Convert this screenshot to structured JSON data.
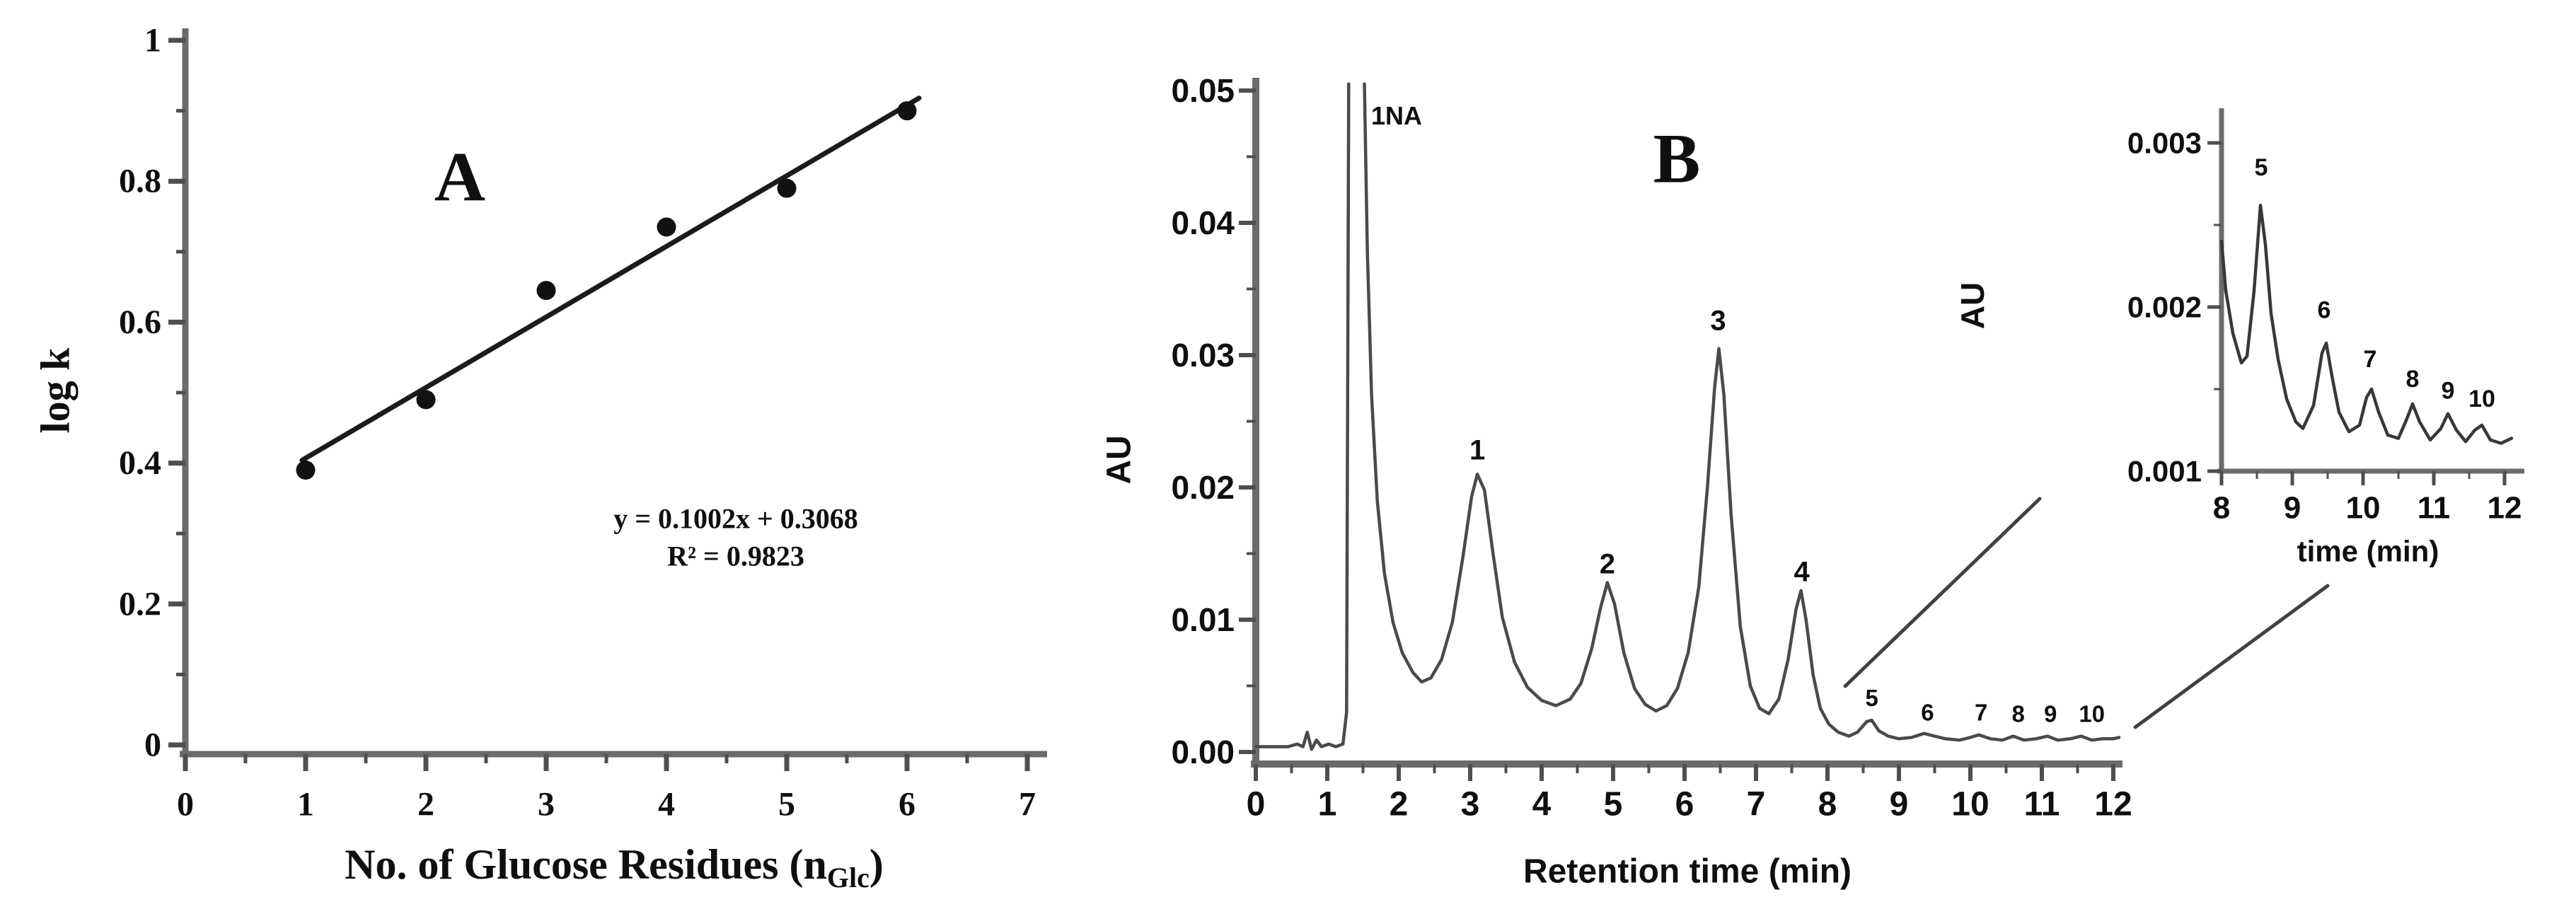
{
  "figure": {
    "panels": {
      "A": {
        "label": "A",
        "ylabel": "log k",
        "xlabel_main": "No. of Glucose Residues (n",
        "xlabel_sub": "Glc",
        "xlabel_end": ")",
        "equation_line1": "y = 0.1002x + 0.3068",
        "equation_line2": "R² = 0.9823"
      },
      "B": {
        "label": "B",
        "ylabel": "AU",
        "xlabel": "Retention time (min)"
      },
      "inset": {
        "ylabel": "AU",
        "xlabel": "time (min)"
      }
    }
  },
  "colors": {
    "axis": "#6b6b6b",
    "tick": "#4f4f4f",
    "trace": "#4a4a4a",
    "inset_trace": "#383838",
    "fit_line": "#1b1b1b",
    "point": "#111111",
    "text": "#0f0f0f",
    "connector": "#414141"
  },
  "chart_data": [
    {
      "id": "A",
      "type": "scatter",
      "title": "A",
      "xlabel": "No. of Glucose Residues (n_Glc)",
      "ylabel": "log k",
      "xlim": [
        0,
        7
      ],
      "ylim": [
        0,
        1
      ],
      "xticks": [
        {
          "v": 0,
          "label": "0"
        },
        {
          "v": 1,
          "label": "1"
        },
        {
          "v": 2,
          "label": "2"
        },
        {
          "v": 3,
          "label": "3"
        },
        {
          "v": 4,
          "label": "4"
        },
        {
          "v": 5,
          "label": "5"
        },
        {
          "v": 6,
          "label": "6"
        },
        {
          "v": 7,
          "label": "7"
        }
      ],
      "yticks": [
        {
          "v": 0,
          "label": "0"
        },
        {
          "v": 0.2,
          "label": "0.2"
        },
        {
          "v": 0.4,
          "label": "0.4"
        },
        {
          "v": 0.6,
          "label": "0.6"
        },
        {
          "v": 0.8,
          "label": "0.8"
        },
        {
          "v": 1,
          "label": "1"
        }
      ],
      "xminor": [
        0.5,
        1.5,
        2.5,
        3.5,
        4.5,
        5.5,
        6.5
      ],
      "yminor": [
        0.1,
        0.3,
        0.5,
        0.7,
        0.9
      ],
      "points": [
        [
          1,
          0.39
        ],
        [
          2,
          0.49
        ],
        [
          3,
          0.645
        ],
        [
          4,
          0.735
        ],
        [
          5,
          0.79
        ],
        [
          6,
          0.9
        ]
      ],
      "fit_line": {
        "x1": 0.97,
        "y1": 0.404,
        "x2": 6.1,
        "y2": 0.918
      },
      "fit_slope": 0.1002,
      "fit_intercept": 0.3068,
      "r_squared": 0.9823
    },
    {
      "id": "B",
      "type": "line",
      "title": "B",
      "xlabel": "Retention time (min)",
      "ylabel": "AU",
      "xlim": [
        0,
        12
      ],
      "ylim": [
        0,
        0.05
      ],
      "xticks": [
        {
          "v": 0,
          "label": "0"
        },
        {
          "v": 1,
          "label": "1"
        },
        {
          "v": 2,
          "label": "2"
        },
        {
          "v": 3,
          "label": "3"
        },
        {
          "v": 4,
          "label": "4"
        },
        {
          "v": 5,
          "label": "5"
        },
        {
          "v": 6,
          "label": "6"
        },
        {
          "v": 7,
          "label": "7"
        },
        {
          "v": 8,
          "label": "8"
        },
        {
          "v": 9,
          "label": "9"
        },
        {
          "v": 10,
          "label": "10"
        },
        {
          "v": 11,
          "label": "11"
        },
        {
          "v": 12,
          "label": "12"
        }
      ],
      "yticks": [
        {
          "v": 0.0,
          "label": "0.00"
        },
        {
          "v": 0.01,
          "label": "0.01"
        },
        {
          "v": 0.02,
          "label": "0.02"
        },
        {
          "v": 0.03,
          "label": "0.03"
        },
        {
          "v": 0.04,
          "label": "0.04"
        },
        {
          "v": 0.05,
          "label": "0.05"
        }
      ],
      "xminor": [
        0.5,
        1.5,
        2.5,
        3.5,
        4.5,
        5.5,
        6.5,
        7.5,
        8.5,
        9.5,
        10.5,
        11.5
      ],
      "yminor": [
        0.005,
        0.015,
        0.025,
        0.035,
        0.045
      ],
      "segments": [
        [
          [
            0,
            0.0004
          ],
          [
            0.45,
            0.0004
          ],
          [
            0.58,
            0.0006
          ],
          [
            0.66,
            0.0004
          ],
          [
            0.72,
            0.0015
          ],
          [
            0.78,
            0.0002
          ],
          [
            0.85,
            0.0009
          ],
          [
            0.92,
            0.0004
          ],
          [
            1.02,
            0.0006
          ],
          [
            1.12,
            0.0004
          ],
          [
            1.22,
            0.0006
          ],
          [
            1.27,
            0.003
          ],
          [
            1.3,
            0.0505
          ]
        ],
        [
          [
            1.52,
            0.0505
          ],
          [
            1.56,
            0.038
          ],
          [
            1.62,
            0.027
          ],
          [
            1.7,
            0.019
          ],
          [
            1.8,
            0.0135
          ],
          [
            1.92,
            0.0098
          ],
          [
            2.05,
            0.0075
          ],
          [
            2.2,
            0.006
          ],
          [
            2.32,
            0.0053
          ],
          [
            2.45,
            0.0056
          ],
          [
            2.6,
            0.007
          ],
          [
            2.75,
            0.0098
          ],
          [
            2.9,
            0.0148
          ],
          [
            3.02,
            0.0193
          ],
          [
            3.1,
            0.021
          ],
          [
            3.2,
            0.0198
          ],
          [
            3.32,
            0.015
          ],
          [
            3.45,
            0.0102
          ],
          [
            3.62,
            0.0068
          ],
          [
            3.8,
            0.0049
          ],
          [
            4.0,
            0.0039
          ],
          [
            4.2,
            0.0035
          ],
          [
            4.4,
            0.004
          ],
          [
            4.55,
            0.0052
          ],
          [
            4.7,
            0.0078
          ],
          [
            4.82,
            0.0108
          ],
          [
            4.92,
            0.0128
          ],
          [
            5.02,
            0.0112
          ],
          [
            5.15,
            0.0075
          ],
          [
            5.3,
            0.0048
          ],
          [
            5.45,
            0.0036
          ],
          [
            5.6,
            0.0031
          ],
          [
            5.75,
            0.0035
          ],
          [
            5.9,
            0.0048
          ],
          [
            6.05,
            0.0075
          ],
          [
            6.2,
            0.0125
          ],
          [
            6.32,
            0.02
          ],
          [
            6.42,
            0.0275
          ],
          [
            6.48,
            0.0305
          ],
          [
            6.55,
            0.027
          ],
          [
            6.65,
            0.018
          ],
          [
            6.78,
            0.0095
          ],
          [
            6.92,
            0.005
          ],
          [
            7.05,
            0.0033
          ],
          [
            7.18,
            0.0029
          ],
          [
            7.32,
            0.004
          ],
          [
            7.45,
            0.007
          ],
          [
            7.56,
            0.0108
          ],
          [
            7.63,
            0.0122
          ],
          [
            7.7,
            0.01
          ],
          [
            7.8,
            0.0058
          ],
          [
            7.9,
            0.0033
          ],
          [
            8.02,
            0.0021
          ],
          [
            8.15,
            0.0015
          ],
          [
            8.3,
            0.0012
          ],
          [
            8.42,
            0.0015
          ],
          [
            8.55,
            0.0023
          ],
          [
            8.62,
            0.0024
          ],
          [
            8.72,
            0.0016
          ],
          [
            8.85,
            0.0012
          ],
          [
            9.0,
            0.001
          ],
          [
            9.18,
            0.0011
          ],
          [
            9.35,
            0.0014
          ],
          [
            9.5,
            0.0012
          ],
          [
            9.65,
            0.001
          ],
          [
            9.85,
            0.0009
          ],
          [
            10.0,
            0.0011
          ],
          [
            10.12,
            0.0013
          ],
          [
            10.28,
            0.001
          ],
          [
            10.45,
            0.0009
          ],
          [
            10.6,
            0.0012
          ],
          [
            10.75,
            0.0009
          ],
          [
            10.92,
            0.001
          ],
          [
            11.08,
            0.0012
          ],
          [
            11.22,
            0.0009
          ],
          [
            11.4,
            0.001
          ],
          [
            11.55,
            0.0012
          ],
          [
            11.7,
            0.0009
          ],
          [
            11.85,
            0.001
          ],
          [
            12.0,
            0.001
          ],
          [
            12.08,
            0.0011
          ]
        ]
      ],
      "peak_labels": [
        {
          "x": 1.97,
          "y": 0.0481,
          "text": "1NA",
          "size": 36
        },
        {
          "x": 3.1,
          "y": 0.0228,
          "text": "1",
          "size": 40
        },
        {
          "x": 4.92,
          "y": 0.0142,
          "text": "2",
          "size": 40
        },
        {
          "x": 6.47,
          "y": 0.0326,
          "text": "3",
          "size": 40
        },
        {
          "x": 7.64,
          "y": 0.0136,
          "text": "4",
          "size": 40
        },
        {
          "x": 8.62,
          "y": 0.0041,
          "text": "5",
          "size": 33
        },
        {
          "x": 9.4,
          "y": 0.003,
          "text": "6",
          "size": 33
        },
        {
          "x": 10.15,
          "y": 0.003,
          "text": "7",
          "size": 33
        },
        {
          "x": 10.67,
          "y": 0.0029,
          "text": "8",
          "size": 33
        },
        {
          "x": 11.12,
          "y": 0.0029,
          "text": "9",
          "size": 33
        },
        {
          "x": 11.7,
          "y": 0.0029,
          "text": "10",
          "size": 33
        }
      ]
    },
    {
      "id": "I",
      "type": "line",
      "title": "inset (zoom of 8-12 min)",
      "xlabel": "time (min)",
      "ylabel": "AU",
      "xlim": [
        8,
        12
      ],
      "ylim": [
        0.001,
        0.003
      ],
      "xticks": [
        {
          "v": 8,
          "label": "8"
        },
        {
          "v": 9,
          "label": "9"
        },
        {
          "v": 10,
          "label": "10"
        },
        {
          "v": 11,
          "label": "11"
        },
        {
          "v": 12,
          "label": "12"
        }
      ],
      "yticks": [
        {
          "v": 0.001,
          "label": "0.001"
        },
        {
          "v": 0.002,
          "label": "0.002"
        },
        {
          "v": 0.003,
          "label": "0.003"
        }
      ],
      "xminor": [
        8.5,
        9.5,
        10.5,
        11.5
      ],
      "yminor": [
        0.0015,
        0.0025
      ],
      "segments": [
        [
          [
            8.0,
            0.0024
          ],
          [
            8.06,
            0.0021
          ],
          [
            8.16,
            0.00184
          ],
          [
            8.28,
            0.00166
          ],
          [
            8.36,
            0.0017
          ],
          [
            8.46,
            0.0021
          ],
          [
            8.55,
            0.00262
          ],
          [
            8.62,
            0.00238
          ],
          [
            8.7,
            0.00196
          ],
          [
            8.8,
            0.00168
          ],
          [
            8.92,
            0.00144
          ],
          [
            9.05,
            0.0013
          ],
          [
            9.15,
            0.00126
          ],
          [
            9.3,
            0.0014
          ],
          [
            9.42,
            0.00172
          ],
          [
            9.48,
            0.00178
          ],
          [
            9.56,
            0.00158
          ],
          [
            9.66,
            0.00136
          ],
          [
            9.8,
            0.00124
          ],
          [
            9.95,
            0.00128
          ],
          [
            10.05,
            0.00145
          ],
          [
            10.12,
            0.0015
          ],
          [
            10.22,
            0.00136
          ],
          [
            10.35,
            0.00122
          ],
          [
            10.5,
            0.0012
          ],
          [
            10.62,
            0.00132
          ],
          [
            10.7,
            0.00141
          ],
          [
            10.8,
            0.0013
          ],
          [
            10.95,
            0.00119
          ],
          [
            11.1,
            0.00126
          ],
          [
            11.2,
            0.00135
          ],
          [
            11.32,
            0.00125
          ],
          [
            11.45,
            0.00118
          ],
          [
            11.58,
            0.00125
          ],
          [
            11.68,
            0.00128
          ],
          [
            11.8,
            0.00119
          ],
          [
            11.95,
            0.00117
          ],
          [
            12.1,
            0.0012
          ]
        ]
      ],
      "peak_labels": [
        {
          "x": 8.56,
          "y": 0.00285,
          "text": "5",
          "size": 34
        },
        {
          "x": 9.45,
          "y": 0.00198,
          "text": "6",
          "size": 34
        },
        {
          "x": 10.1,
          "y": 0.00168,
          "text": "7",
          "size": 34
        },
        {
          "x": 10.7,
          "y": 0.00156,
          "text": "8",
          "size": 34
        },
        {
          "x": 11.2,
          "y": 0.00149,
          "text": "9",
          "size": 34
        },
        {
          "x": 11.68,
          "y": 0.00144,
          "text": "10",
          "size": 34
        }
      ]
    }
  ]
}
